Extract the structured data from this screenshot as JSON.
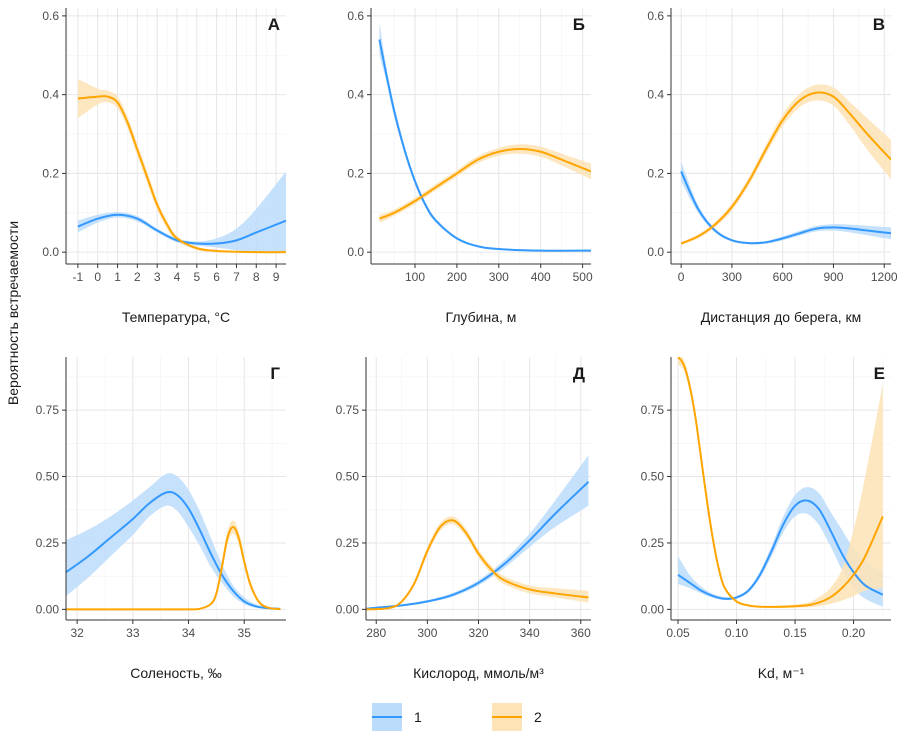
{
  "figure": {
    "ylabel": "Вероятность встречаемости",
    "colors": {
      "series1": "#3399ff",
      "series2": "#ffa500",
      "band1": "#bcdcfb",
      "band2": "#fde3b6",
      "grid": "#e6e6e6",
      "axis": "#333333"
    },
    "legend": {
      "position": "bottom-center",
      "items": [
        {
          "label": "1"
        },
        {
          "label": "2"
        }
      ]
    }
  },
  "chart_data": [
    {
      "type": "line",
      "panel_label": "А",
      "xlabel": "Температура, °C",
      "xlim": [
        -1.6,
        9.5
      ],
      "ylim": [
        -0.03,
        0.62
      ],
      "xticks": [
        -1,
        0,
        1,
        2,
        3,
        4,
        5,
        6,
        7,
        8,
        9
      ],
      "xticklabels": [
        "-1",
        "0",
        "1",
        "2",
        "3",
        "4",
        "5",
        "6",
        "7",
        "8",
        "9"
      ],
      "yticks": [
        0,
        0.2,
        0.4,
        0.6
      ],
      "yticklabels": [
        "0.0",
        "0.2",
        "0.4",
        "0.6"
      ],
      "series": [
        {
          "name": "1",
          "x": [
            -1,
            0,
            1,
            2,
            3,
            4,
            5,
            6,
            7,
            8,
            9.5
          ],
          "values": [
            0.065,
            0.085,
            0.095,
            0.085,
            0.055,
            0.03,
            0.022,
            0.022,
            0.03,
            0.05,
            0.08
          ],
          "ci_low": [
            0.05,
            0.075,
            0.088,
            0.078,
            0.05,
            0.025,
            0.017,
            0.012,
            0.005,
            0.0,
            0.0
          ],
          "ci_high": [
            0.08,
            0.095,
            0.102,
            0.092,
            0.06,
            0.035,
            0.027,
            0.035,
            0.06,
            0.11,
            0.205
          ]
        },
        {
          "name": "2",
          "x": [
            -1,
            0,
            0.5,
            1,
            1.5,
            2,
            2.5,
            3,
            3.5,
            4,
            5,
            6,
            7,
            8,
            9.5
          ],
          "values": [
            0.39,
            0.395,
            0.395,
            0.38,
            0.33,
            0.26,
            0.19,
            0.12,
            0.07,
            0.035,
            0.01,
            0.003,
            0.001,
            0.0,
            0.0
          ],
          "ci_low": [
            0.34,
            0.375,
            0.38,
            0.365,
            0.315,
            0.245,
            0.175,
            0.108,
            0.06,
            0.028,
            0.006,
            0.001,
            0.0,
            0.0,
            0.0
          ],
          "ci_high": [
            0.44,
            0.415,
            0.41,
            0.395,
            0.345,
            0.275,
            0.205,
            0.132,
            0.08,
            0.042,
            0.014,
            0.005,
            0.002,
            0.001,
            0.001
          ]
        }
      ]
    },
    {
      "type": "line",
      "panel_label": "Б",
      "xlabel": "Глубина, м",
      "xlim": [
        -5,
        520
      ],
      "ylim": [
        -0.03,
        0.62
      ],
      "xticks": [
        100,
        200,
        300,
        400,
        500
      ],
      "xticklabels": [
        "100",
        "200",
        "300",
        "400",
        "500"
      ],
      "yticks": [
        0,
        0.2,
        0.4,
        0.6
      ],
      "yticklabels": [
        "0.0",
        "0.2",
        "0.4",
        "0.6"
      ],
      "series": [
        {
          "name": "1",
          "x": [
            15,
            30,
            50,
            75,
            100,
            125,
            150,
            200,
            250,
            300,
            400,
            520
          ],
          "values": [
            0.54,
            0.46,
            0.36,
            0.26,
            0.18,
            0.12,
            0.08,
            0.035,
            0.015,
            0.008,
            0.004,
            0.004
          ],
          "ci_low": [
            0.5,
            0.44,
            0.345,
            0.25,
            0.172,
            0.113,
            0.075,
            0.032,
            0.013,
            0.006,
            0.003,
            0.003
          ],
          "ci_high": [
            0.585,
            0.48,
            0.375,
            0.27,
            0.188,
            0.127,
            0.085,
            0.038,
            0.017,
            0.01,
            0.006,
            0.006
          ]
        },
        {
          "name": "2",
          "x": [
            15,
            50,
            100,
            150,
            200,
            250,
            300,
            350,
            400,
            450,
            520
          ],
          "values": [
            0.085,
            0.1,
            0.13,
            0.165,
            0.2,
            0.235,
            0.255,
            0.262,
            0.255,
            0.235,
            0.205
          ],
          "ci_low": [
            0.075,
            0.092,
            0.122,
            0.157,
            0.192,
            0.226,
            0.245,
            0.25,
            0.242,
            0.22,
            0.185
          ],
          "ci_high": [
            0.095,
            0.108,
            0.138,
            0.173,
            0.208,
            0.244,
            0.265,
            0.274,
            0.268,
            0.25,
            0.225
          ]
        }
      ]
    },
    {
      "type": "line",
      "panel_label": "В",
      "xlabel": "Дистанция до берега, км",
      "xlim": [
        -60,
        1240
      ],
      "ylim": [
        -0.03,
        0.62
      ],
      "xticks": [
        0,
        300,
        600,
        900,
        1200
      ],
      "xticklabels": [
        "0",
        "300",
        "600",
        "900",
        "1200"
      ],
      "yticks": [
        0,
        0.2,
        0.4,
        0.6
      ],
      "yticklabels": [
        "0.0",
        "0.2",
        "0.4",
        "0.6"
      ],
      "series": [
        {
          "name": "1",
          "x": [
            0,
            100,
            200,
            300,
            400,
            500,
            600,
            700,
            800,
            900,
            1000,
            1100,
            1240
          ],
          "values": [
            0.205,
            0.11,
            0.055,
            0.03,
            0.023,
            0.025,
            0.035,
            0.048,
            0.06,
            0.063,
            0.06,
            0.055,
            0.048
          ],
          "ci_low": [
            0.18,
            0.1,
            0.05,
            0.027,
            0.02,
            0.022,
            0.03,
            0.042,
            0.053,
            0.055,
            0.05,
            0.043,
            0.033
          ],
          "ci_high": [
            0.23,
            0.12,
            0.06,
            0.033,
            0.026,
            0.028,
            0.04,
            0.054,
            0.067,
            0.071,
            0.07,
            0.067,
            0.063
          ]
        },
        {
          "name": "2",
          "x": [
            0,
            100,
            200,
            300,
            400,
            500,
            600,
            700,
            800,
            900,
            1000,
            1100,
            1240
          ],
          "values": [
            0.022,
            0.04,
            0.07,
            0.115,
            0.18,
            0.26,
            0.335,
            0.385,
            0.405,
            0.395,
            0.35,
            0.3,
            0.235
          ],
          "ci_low": [
            0.018,
            0.035,
            0.063,
            0.106,
            0.17,
            0.248,
            0.32,
            0.368,
            0.385,
            0.372,
            0.32,
            0.26,
            0.185
          ],
          "ci_high": [
            0.026,
            0.045,
            0.077,
            0.124,
            0.19,
            0.272,
            0.35,
            0.402,
            0.425,
            0.418,
            0.38,
            0.34,
            0.285
          ]
        }
      ]
    },
    {
      "type": "line",
      "panel_label": "Г",
      "xlabel": "Соленость, ‰",
      "xlim": [
        31.8,
        35.75
      ],
      "ylim": [
        -0.04,
        0.95
      ],
      "xticks": [
        32,
        33,
        34,
        35
      ],
      "xticklabels": [
        "32",
        "33",
        "34",
        "35"
      ],
      "yticks": [
        0,
        0.25,
        0.5,
        0.75
      ],
      "yticklabels": [
        "0.00",
        "0.25",
        "0.50",
        "0.75"
      ],
      "series": [
        {
          "name": "1",
          "x": [
            31.8,
            32.2,
            32.6,
            33,
            33.3,
            33.6,
            33.8,
            34,
            34.2,
            34.4,
            34.6,
            34.8,
            35,
            35.2,
            35.4,
            35.65
          ],
          "values": [
            0.14,
            0.2,
            0.27,
            0.34,
            0.4,
            0.44,
            0.43,
            0.38,
            0.3,
            0.21,
            0.13,
            0.07,
            0.03,
            0.012,
            0.005,
            0.002
          ],
          "ci_low": [
            0.05,
            0.12,
            0.2,
            0.28,
            0.35,
            0.39,
            0.37,
            0.31,
            0.24,
            0.16,
            0.1,
            0.05,
            0.02,
            0.006,
            0.002,
            0.0
          ],
          "ci_high": [
            0.26,
            0.3,
            0.35,
            0.41,
            0.46,
            0.51,
            0.5,
            0.45,
            0.37,
            0.27,
            0.17,
            0.09,
            0.045,
            0.02,
            0.01,
            0.005
          ]
        },
        {
          "name": "2",
          "x": [
            31.8,
            32.5,
            33,
            33.5,
            34,
            34.2,
            34.4,
            34.5,
            34.6,
            34.7,
            34.8,
            34.9,
            35,
            35.1,
            35.2,
            35.3,
            35.45,
            35.65
          ],
          "values": [
            0.0,
            0.0,
            0.0,
            0.0,
            0.0,
            0.002,
            0.02,
            0.06,
            0.16,
            0.27,
            0.31,
            0.27,
            0.18,
            0.1,
            0.05,
            0.02,
            0.005,
            0.001
          ],
          "ci_low": [
            0.0,
            0.0,
            0.0,
            0.0,
            0.0,
            0.001,
            0.015,
            0.05,
            0.14,
            0.245,
            0.285,
            0.245,
            0.16,
            0.085,
            0.04,
            0.015,
            0.003,
            0.0
          ],
          "ci_high": [
            0.0,
            0.0,
            0.0,
            0.0,
            0.001,
            0.003,
            0.025,
            0.07,
            0.18,
            0.295,
            0.335,
            0.295,
            0.2,
            0.115,
            0.06,
            0.025,
            0.007,
            0.002
          ]
        }
      ]
    },
    {
      "type": "line",
      "panel_label": "Д",
      "xlabel": "Кислород, ммоль/м³",
      "xlim": [
        276,
        364
      ],
      "ylim": [
        -0.04,
        0.95
      ],
      "xticks": [
        280,
        300,
        320,
        340,
        360
      ],
      "xticklabels": [
        "280",
        "300",
        "320",
        "340",
        "360"
      ],
      "yticks": [
        0,
        0.25,
        0.5,
        0.75
      ],
      "yticklabels": [
        "0.00",
        "0.25",
        "0.50",
        "0.75"
      ],
      "series": [
        {
          "name": "1",
          "x": [
            276,
            280,
            290,
            300,
            310,
            320,
            330,
            340,
            350,
            363
          ],
          "values": [
            0.002,
            0.006,
            0.015,
            0.03,
            0.055,
            0.1,
            0.17,
            0.26,
            0.36,
            0.48
          ],
          "ci_low": [
            0.001,
            0.004,
            0.012,
            0.025,
            0.048,
            0.09,
            0.155,
            0.235,
            0.31,
            0.39
          ],
          "ci_high": [
            0.003,
            0.008,
            0.018,
            0.035,
            0.062,
            0.11,
            0.185,
            0.285,
            0.41,
            0.58
          ]
        },
        {
          "name": "2",
          "x": [
            276,
            285,
            290,
            295,
            300,
            305,
            310,
            315,
            320,
            325,
            330,
            340,
            350,
            363
          ],
          "values": [
            0.0,
            0.005,
            0.03,
            0.1,
            0.22,
            0.31,
            0.335,
            0.29,
            0.21,
            0.15,
            0.11,
            0.075,
            0.06,
            0.045
          ],
          "ci_low": [
            0.0,
            0.004,
            0.025,
            0.09,
            0.205,
            0.295,
            0.32,
            0.275,
            0.195,
            0.135,
            0.095,
            0.06,
            0.045,
            0.025
          ],
          "ci_high": [
            0.0,
            0.006,
            0.035,
            0.11,
            0.235,
            0.325,
            0.35,
            0.305,
            0.225,
            0.165,
            0.125,
            0.09,
            0.08,
            0.07
          ]
        }
      ]
    },
    {
      "type": "line",
      "panel_label": "Е",
      "xlabel": "Kd, м⁻¹",
      "xlim": [
        0.044,
        0.232
      ],
      "ylim": [
        -0.04,
        0.95
      ],
      "xticks": [
        0.05,
        0.1,
        0.15,
        0.2
      ],
      "xticklabels": [
        "0.05",
        "0.10",
        "0.15",
        "0.20"
      ],
      "yticks": [
        0,
        0.25,
        0.5,
        0.75
      ],
      "yticklabels": [
        "0.00",
        "0.25",
        "0.50",
        "0.75"
      ],
      "series": [
        {
          "name": "1",
          "x": [
            0.05,
            0.06,
            0.07,
            0.08,
            0.09,
            0.1,
            0.11,
            0.12,
            0.13,
            0.14,
            0.15,
            0.16,
            0.17,
            0.18,
            0.19,
            0.2,
            0.21,
            0.225
          ],
          "values": [
            0.13,
            0.1,
            0.07,
            0.05,
            0.04,
            0.045,
            0.07,
            0.13,
            0.22,
            0.32,
            0.39,
            0.41,
            0.38,
            0.3,
            0.21,
            0.14,
            0.09,
            0.055
          ],
          "ci_low": [
            0.095,
            0.08,
            0.06,
            0.043,
            0.035,
            0.04,
            0.063,
            0.117,
            0.2,
            0.29,
            0.35,
            0.36,
            0.32,
            0.24,
            0.15,
            0.08,
            0.04,
            0.01
          ],
          "ci_high": [
            0.2,
            0.13,
            0.085,
            0.058,
            0.046,
            0.05,
            0.077,
            0.143,
            0.24,
            0.35,
            0.43,
            0.46,
            0.44,
            0.37,
            0.3,
            0.23,
            0.18,
            0.14
          ]
        },
        {
          "name": "2",
          "x": [
            0.05,
            0.055,
            0.06,
            0.065,
            0.07,
            0.075,
            0.08,
            0.085,
            0.09,
            0.1,
            0.11,
            0.12,
            0.14,
            0.16,
            0.17,
            0.18,
            0.19,
            0.2,
            0.21,
            0.225
          ],
          "values": [
            0.95,
            0.92,
            0.84,
            0.72,
            0.56,
            0.4,
            0.26,
            0.15,
            0.08,
            0.03,
            0.015,
            0.01,
            0.01,
            0.015,
            0.025,
            0.045,
            0.08,
            0.13,
            0.2,
            0.35
          ],
          "ci_low": [
            0.92,
            0.9,
            0.82,
            0.7,
            0.54,
            0.38,
            0.245,
            0.14,
            0.073,
            0.026,
            0.012,
            0.007,
            0.006,
            0.008,
            0.012,
            0.02,
            0.033,
            0.05,
            0.07,
            0.08
          ],
          "ci_high": [
            0.97,
            0.94,
            0.86,
            0.74,
            0.58,
            0.42,
            0.275,
            0.16,
            0.087,
            0.034,
            0.018,
            0.013,
            0.015,
            0.025,
            0.045,
            0.08,
            0.15,
            0.3,
            0.5,
            0.85
          ]
        }
      ]
    }
  ]
}
